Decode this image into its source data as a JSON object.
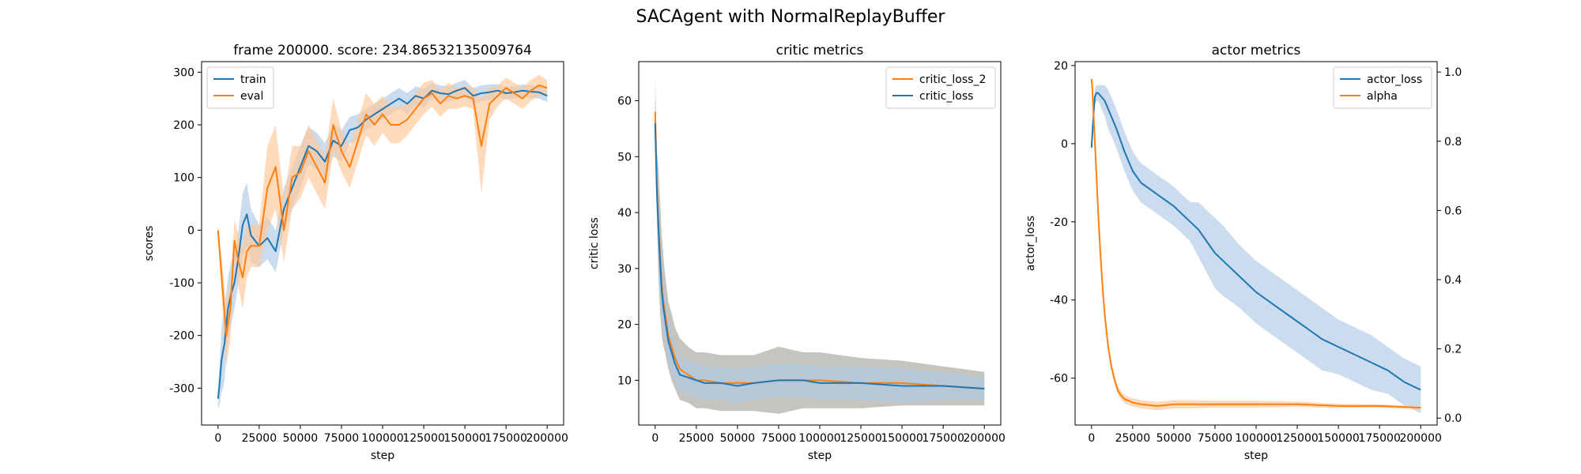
{
  "figure": {
    "suptitle": "SACAgent with NormalReplayBuffer"
  },
  "colors": {
    "blue": "#1f77b4",
    "orange": "#ff7f0e",
    "blue_band": "#aec9e3",
    "orange_band": "#ffc898",
    "grey_band": "#a8a49c"
  },
  "chart_data": [
    {
      "type": "line",
      "title": "frame 200000. score: 234.86532135009764",
      "xlabel": "step",
      "ylabel": "scores",
      "xlim": [
        -10000,
        210000
      ],
      "ylim": [
        -370,
        320
      ],
      "xticks": [
        0,
        25000,
        50000,
        75000,
        100000,
        125000,
        150000,
        175000,
        200000
      ],
      "yticks": [
        -300,
        -200,
        -100,
        0,
        100,
        200,
        300
      ],
      "legend": {
        "position": "top-left",
        "entries": [
          "train",
          "eval"
        ]
      },
      "series": [
        {
          "name": "train",
          "color": "blue",
          "band": "blue_band",
          "x": [
            0,
            1000,
            2000,
            3000,
            4000,
            5000,
            6000,
            8000,
            10000,
            12000,
            15000,
            17500,
            20000,
            25000,
            30000,
            35000,
            40000,
            45000,
            50000,
            55000,
            60000,
            65000,
            70000,
            75000,
            80000,
            85000,
            90000,
            95000,
            100000,
            105000,
            110000,
            115000,
            120000,
            125000,
            130000,
            135000,
            140000,
            145000,
            150000,
            155000,
            160000,
            165000,
            170000,
            175000,
            180000,
            185000,
            190000,
            195000,
            200000
          ],
          "y": [
            -320,
            -290,
            -250,
            -230,
            -215,
            -180,
            -150,
            -120,
            -100,
            -60,
            10,
            30,
            -10,
            -30,
            -15,
            -40,
            40,
            80,
            120,
            160,
            150,
            130,
            170,
            160,
            190,
            195,
            210,
            220,
            230,
            240,
            250,
            240,
            255,
            250,
            265,
            260,
            258,
            265,
            270,
            255,
            260,
            262,
            265,
            260,
            262,
            265,
            263,
            262,
            255
          ],
          "band_half_width": [
            20,
            40,
            60,
            70,
            70,
            60,
            60,
            60,
            50,
            50,
            60,
            60,
            50,
            40,
            40,
            40,
            40,
            40,
            40,
            35,
            35,
            35,
            30,
            30,
            25,
            25,
            20,
            20,
            20,
            20,
            20,
            20,
            18,
            18,
            15,
            15,
            15,
            15,
            15,
            15,
            15,
            15,
            12,
            12,
            12,
            12,
            12,
            12,
            12
          ]
        },
        {
          "name": "eval",
          "color": "orange",
          "band": "orange_band",
          "x": [
            0,
            2500,
            5000,
            7500,
            10000,
            12500,
            15000,
            17500,
            20000,
            25000,
            30000,
            35000,
            40000,
            45000,
            50000,
            55000,
            60000,
            65000,
            70000,
            75000,
            80000,
            85000,
            90000,
            95000,
            100000,
            105000,
            110000,
            115000,
            120000,
            125000,
            130000,
            135000,
            140000,
            145000,
            150000,
            155000,
            160000,
            165000,
            170000,
            175000,
            180000,
            185000,
            190000,
            195000,
            200000
          ],
          "y": [
            0,
            -100,
            -200,
            -150,
            -20,
            -60,
            -90,
            -40,
            -30,
            -30,
            80,
            120,
            0,
            100,
            110,
            150,
            120,
            90,
            200,
            150,
            120,
            170,
            220,
            200,
            220,
            200,
            200,
            210,
            230,
            250,
            260,
            240,
            255,
            250,
            255,
            250,
            160,
            240,
            255,
            270,
            260,
            250,
            265,
            275,
            270
          ],
          "band_half_width": [
            10,
            40,
            60,
            60,
            40,
            50,
            60,
            50,
            40,
            40,
            80,
            80,
            60,
            60,
            50,
            50,
            50,
            50,
            50,
            40,
            40,
            40,
            40,
            40,
            35,
            35,
            35,
            30,
            30,
            30,
            25,
            25,
            25,
            20,
            20,
            20,
            90,
            30,
            20,
            20,
            20,
            20,
            20,
            20,
            15
          ]
        }
      ]
    },
    {
      "type": "line",
      "title": "critic metrics",
      "xlabel": "step",
      "ylabel": "critic loss",
      "xlim": [
        -10000,
        210000
      ],
      "ylim": [
        2,
        67
      ],
      "xticks": [
        0,
        25000,
        50000,
        75000,
        100000,
        125000,
        150000,
        175000,
        200000
      ],
      "yticks": [
        10,
        20,
        30,
        40,
        50,
        60
      ],
      "legend": {
        "position": "top-right",
        "entries": [
          "critic_loss_2",
          "critic_loss"
        ]
      },
      "series": [
        {
          "name": "critic_loss_2",
          "color": "orange",
          "band": "grey_band",
          "x": [
            0,
            1000,
            2000,
            3000,
            4000,
            5000,
            6000,
            8000,
            10000,
            12000,
            15000,
            20000,
            25000,
            30000,
            40000,
            50000,
            60000,
            75000,
            90000,
            100000,
            125000,
            150000,
            175000,
            200000
          ],
          "y": [
            58,
            45,
            38,
            32,
            27,
            24,
            22,
            18,
            16,
            14,
            12,
            11,
            10,
            10,
            9.5,
            9.5,
            9.5,
            10,
            10,
            10,
            9.5,
            9.5,
            9,
            8.5
          ],
          "band_half_width": [
            6,
            6,
            10,
            10,
            9,
            8,
            7,
            6,
            6,
            5.5,
            5.5,
            5,
            5,
            5,
            5,
            5,
            5,
            6,
            5,
            5,
            4.5,
            4,
            3.5,
            3
          ]
        },
        {
          "name": "critic_loss",
          "color": "blue",
          "band": "blue_band",
          "x": [
            0,
            1000,
            2000,
            3000,
            4000,
            5000,
            6000,
            8000,
            10000,
            12000,
            15000,
            20000,
            25000,
            30000,
            40000,
            50000,
            60000,
            75000,
            90000,
            100000,
            125000,
            150000,
            175000,
            200000
          ],
          "y": [
            56,
            44,
            37,
            31,
            26,
            23,
            21,
            17,
            15,
            13,
            11,
            10.5,
            10,
            9.5,
            9.5,
            9,
            9.5,
            10,
            10,
            9.5,
            9.5,
            9,
            9,
            8.5
          ],
          "band_half_width": [
            4,
            4,
            5,
            5,
            5,
            4,
            4,
            4,
            3.5,
            3,
            3,
            3,
            3,
            3,
            3,
            3,
            3,
            3,
            3,
            3,
            3,
            3,
            2.5,
            2
          ]
        }
      ]
    },
    {
      "type": "line",
      "title": "actor metrics",
      "xlabel": "step",
      "ylabel": "actor_loss",
      "xlim": [
        -10000,
        210000
      ],
      "ylim": [
        -72,
        21
      ],
      "xticks": [
        0,
        25000,
        50000,
        75000,
        100000,
        125000,
        150000,
        175000,
        200000
      ],
      "yticks": [
        -60,
        -40,
        -20,
        0,
        20
      ],
      "y2lim": [
        -0.02,
        1.03
      ],
      "y2ticks": [
        0.0,
        0.2,
        0.4,
        0.6,
        0.8,
        1.0
      ],
      "legend": {
        "position": "top-right",
        "entries": [
          "actor_loss",
          "alpha"
        ]
      },
      "series": [
        {
          "name": "actor_loss",
          "color": "blue",
          "band": "blue_band",
          "axis": "left",
          "x": [
            0,
            1000,
            2000,
            3000,
            4000,
            6000,
            8000,
            10000,
            15000,
            20000,
            25000,
            30000,
            40000,
            50000,
            60000,
            65000,
            70000,
            75000,
            80000,
            90000,
            100000,
            110000,
            120000,
            130000,
            140000,
            150000,
            160000,
            170000,
            180000,
            190000,
            200000
          ],
          "y": [
            -1,
            6,
            12,
            13,
            13,
            12,
            11,
            9,
            4,
            -2,
            -7,
            -10,
            -13,
            -16,
            -20,
            -22,
            -25,
            -28,
            -30,
            -34,
            -38,
            -41,
            -44,
            -47,
            -50,
            -52,
            -54,
            -56,
            -58,
            -61,
            -63
          ],
          "band_half_width": [
            2,
            2,
            2,
            2,
            2,
            3,
            4,
            5,
            5,
            5,
            5,
            5,
            5,
            5,
            5,
            7,
            8,
            9,
            9,
            8,
            8,
            8,
            8,
            8,
            8,
            7,
            7,
            7,
            6,
            6,
            6
          ]
        },
        {
          "name": "alpha",
          "color": "orange",
          "band": "orange_band",
          "axis": "right",
          "x": [
            0,
            500,
            1000,
            2000,
            3000,
            4000,
            5000,
            6000,
            7000,
            8000,
            10000,
            12000,
            14000,
            16000,
            18000,
            20000,
            25000,
            30000,
            40000,
            50000,
            60000,
            75000,
            100000,
            125000,
            150000,
            175000,
            200000
          ],
          "y": [
            0.98,
            0.95,
            0.9,
            0.8,
            0.7,
            0.6,
            0.51,
            0.43,
            0.36,
            0.3,
            0.21,
            0.15,
            0.11,
            0.08,
            0.065,
            0.055,
            0.045,
            0.04,
            0.035,
            0.04,
            0.04,
            0.04,
            0.04,
            0.04,
            0.035,
            0.035,
            0.03
          ],
          "band_half_width": [
            0.01,
            0.01,
            0.01,
            0.01,
            0.01,
            0.01,
            0.01,
            0.01,
            0.01,
            0.01,
            0.01,
            0.012,
            0.012,
            0.012,
            0.012,
            0.012,
            0.012,
            0.012,
            0.012,
            0.012,
            0.012,
            0.01,
            0.01,
            0.008,
            0.006,
            0.005,
            0.004
          ]
        }
      ]
    }
  ]
}
